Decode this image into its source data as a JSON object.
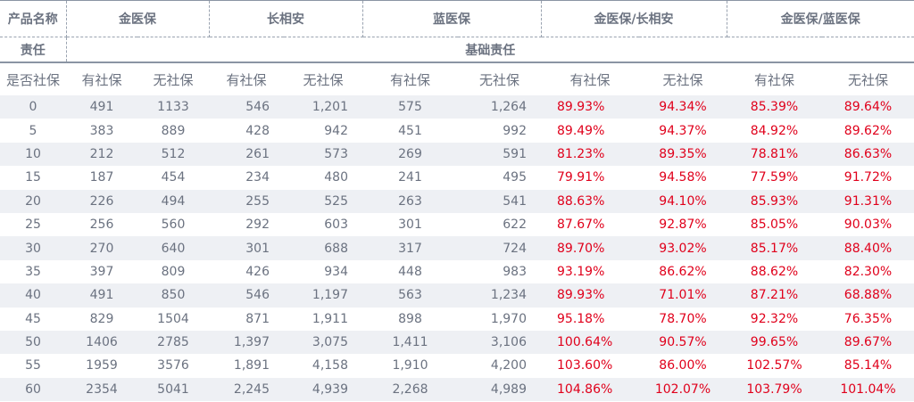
{
  "header": {
    "product_label": "产品名称",
    "products": [
      "金医保",
      "长相安",
      "蓝医保",
      "金医保/长相安",
      "金医保/蓝医保"
    ],
    "responsibility_label": "责任",
    "responsibility_value": "基础责任"
  },
  "subheader": [
    "是否社保",
    "有社保",
    "无社保",
    "有社保",
    "无社保",
    "有社保",
    "无社保",
    "有社保",
    "无社保",
    "有社保",
    "无社保"
  ],
  "rows": [
    [
      "0",
      "491",
      "1133",
      "546",
      "1,201",
      "575",
      "1,264",
      "89.93%",
      "94.34%",
      "85.39%",
      "89.64%"
    ],
    [
      "5",
      "383",
      "889",
      "428",
      "942",
      "451",
      "992",
      "89.49%",
      "94.37%",
      "84.92%",
      "89.62%"
    ],
    [
      "10",
      "212",
      "512",
      "261",
      "573",
      "269",
      "591",
      "81.23%",
      "89.35%",
      "78.81%",
      "86.63%"
    ],
    [
      "15",
      "187",
      "454",
      "234",
      "480",
      "241",
      "495",
      "79.91%",
      "94.58%",
      "77.59%",
      "91.72%"
    ],
    [
      "20",
      "226",
      "494",
      "255",
      "525",
      "263",
      "541",
      "88.63%",
      "94.10%",
      "85.93%",
      "91.31%"
    ],
    [
      "25",
      "256",
      "560",
      "292",
      "603",
      "301",
      "622",
      "87.67%",
      "92.87%",
      "85.05%",
      "90.03%"
    ],
    [
      "30",
      "270",
      "640",
      "301",
      "688",
      "317",
      "724",
      "89.70%",
      "93.02%",
      "85.17%",
      "88.40%"
    ],
    [
      "35",
      "397",
      "809",
      "426",
      "934",
      "448",
      "983",
      "93.19%",
      "86.62%",
      "88.62%",
      "82.30%"
    ],
    [
      "40",
      "491",
      "850",
      "546",
      "1,197",
      "563",
      "1,234",
      "89.93%",
      "71.01%",
      "87.21%",
      "68.88%"
    ],
    [
      "45",
      "829",
      "1504",
      "871",
      "1,911",
      "898",
      "1,970",
      "95.18%",
      "78.70%",
      "92.32%",
      "76.35%"
    ],
    [
      "50",
      "1406",
      "2785",
      "1,397",
      "3,075",
      "1,411",
      "3,106",
      "100.64%",
      "90.57%",
      "99.65%",
      "89.67%"
    ],
    [
      "55",
      "1959",
      "3576",
      "1,891",
      "4,158",
      "1,910",
      "4,200",
      "103.60%",
      "86.00%",
      "102.57%",
      "85.14%"
    ],
    [
      "60",
      "2354",
      "5041",
      "2,245",
      "4,939",
      "2,268",
      "4,989",
      "104.86%",
      "102.07%",
      "103.79%",
      "101.04%"
    ]
  ],
  "colors": {
    "text": "#6b7280",
    "highlight_red": "#e0001b",
    "alt_row": "#eef0f4"
  }
}
